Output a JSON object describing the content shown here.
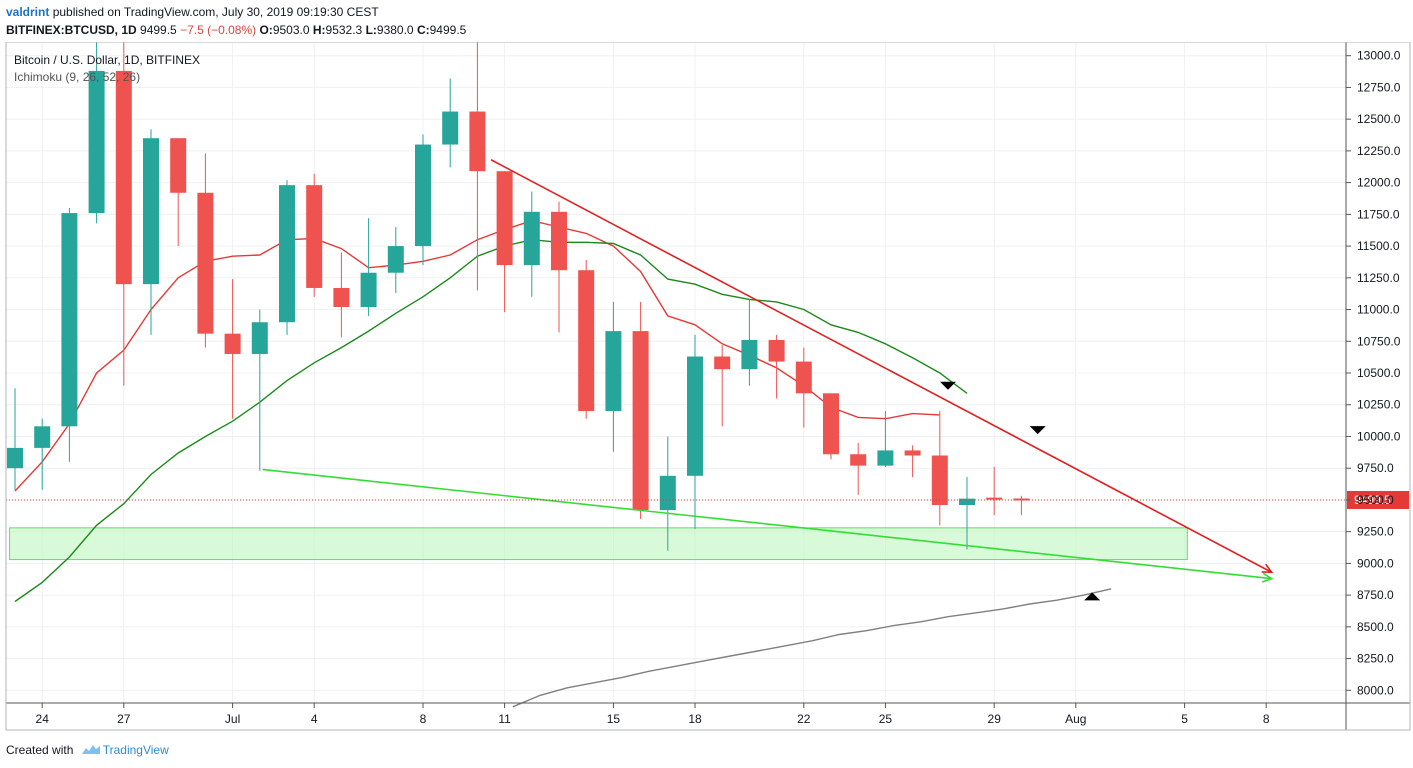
{
  "header": {
    "user": "valdrint",
    "published": "published on TradingView.com, July 30, 2019 09:19:30 CEST",
    "symbol": "BITFINEX:BTCUSD, 1D",
    "last": "9499.5",
    "change": "−7.5 (−0.08%)",
    "o_label": "O:",
    "o_value": "9503.0",
    "h_label": "H:",
    "h_value": "9532.3",
    "l_label": "L:",
    "l_value": "9380.0",
    "c_label": "C:",
    "c_value": "9499.5"
  },
  "legend": {
    "instrument": "Bitcoin / U.S. Dollar, 1D, BITFINEX",
    "indicator": "Ichimoku (9, 26, 52, 26)"
  },
  "footer": {
    "created_with": "Created with",
    "brand": "TradingView"
  },
  "colors": {
    "up": "#26a69a",
    "down": "#ef5350",
    "conversion": "#e53935",
    "base": "#1b8a1b",
    "span": "#808080",
    "resistance": "#e02020",
    "support": "#33dd33",
    "zone": "#b9f5b9",
    "price_line": "#e53935"
  },
  "chart_data": {
    "type": "candlestick",
    "y_ticks": [
      8000,
      8250,
      8500,
      8750,
      9000,
      9250,
      9500,
      9750,
      10000,
      10250,
      10500,
      10750,
      11000,
      11250,
      11500,
      11750,
      12000,
      12250,
      12500,
      12750,
      13000
    ],
    "ylim": [
      7900,
      13100
    ],
    "x_ticks": [
      {
        "label": "24",
        "i": 1
      },
      {
        "label": "27",
        "i": 4
      },
      {
        "label": "Jul",
        "i": 8
      },
      {
        "label": "4",
        "i": 11
      },
      {
        "label": "8",
        "i": 15
      },
      {
        "label": "11",
        "i": 18
      },
      {
        "label": "15",
        "i": 22
      },
      {
        "label": "18",
        "i": 25
      },
      {
        "label": "22",
        "i": 29
      },
      {
        "label": "25",
        "i": 32
      },
      {
        "label": "29",
        "i": 36
      },
      {
        "label": "Aug",
        "i": 39
      },
      {
        "label": "5",
        "i": 43
      },
      {
        "label": "8",
        "i": 46
      }
    ],
    "last_price": 9499.5,
    "last_price_label": "9499.5",
    "candles": [
      {
        "o": 9750,
        "h": 10380,
        "l": 9580,
        "c": 9910
      },
      {
        "o": 9910,
        "h": 10140,
        "l": 9580,
        "c": 10080
      },
      {
        "o": 10080,
        "h": 11800,
        "l": 9800,
        "c": 11760
      },
      {
        "o": 11760,
        "h": 13300,
        "l": 11680,
        "c": 12880
      },
      {
        "o": 12880,
        "h": 13250,
        "l": 10400,
        "c": 11200
      },
      {
        "o": 11200,
        "h": 12420,
        "l": 10800,
        "c": 12350
      },
      {
        "o": 12350,
        "h": 12350,
        "l": 11500,
        "c": 11920
      },
      {
        "o": 11920,
        "h": 12230,
        "l": 10700,
        "c": 10810
      },
      {
        "o": 10810,
        "h": 11240,
        "l": 10140,
        "c": 10650
      },
      {
        "o": 10650,
        "h": 11000,
        "l": 9730,
        "c": 10900
      },
      {
        "o": 10900,
        "h": 12020,
        "l": 10800,
        "c": 11980
      },
      {
        "o": 11980,
        "h": 12070,
        "l": 11100,
        "c": 11170
      },
      {
        "o": 11170,
        "h": 11450,
        "l": 10780,
        "c": 11020
      },
      {
        "o": 11020,
        "h": 11720,
        "l": 10950,
        "c": 11290
      },
      {
        "o": 11290,
        "h": 11650,
        "l": 11130,
        "c": 11500
      },
      {
        "o": 11500,
        "h": 12380,
        "l": 11350,
        "c": 12300
      },
      {
        "o": 12300,
        "h": 12820,
        "l": 12120,
        "c": 12560
      },
      {
        "o": 12560,
        "h": 13180,
        "l": 11150,
        "c": 12090
      },
      {
        "o": 12090,
        "h": 12090,
        "l": 10980,
        "c": 11350
      },
      {
        "o": 11350,
        "h": 11930,
        "l": 11100,
        "c": 11770
      },
      {
        "o": 11770,
        "h": 11850,
        "l": 10820,
        "c": 11310
      },
      {
        "o": 11310,
        "h": 11390,
        "l": 10140,
        "c": 10200
      },
      {
        "o": 10200,
        "h": 11060,
        "l": 9880,
        "c": 10830
      },
      {
        "o": 10830,
        "h": 11060,
        "l": 9350,
        "c": 9420
      },
      {
        "o": 9420,
        "h": 10000,
        "l": 9100,
        "c": 9690
      },
      {
        "o": 9690,
        "h": 10800,
        "l": 9270,
        "c": 10630
      },
      {
        "o": 10630,
        "h": 10720,
        "l": 10080,
        "c": 10530
      },
      {
        "o": 10530,
        "h": 11080,
        "l": 10400,
        "c": 10760
      },
      {
        "o": 10760,
        "h": 10800,
        "l": 10300,
        "c": 10590
      },
      {
        "o": 10590,
        "h": 10700,
        "l": 10070,
        "c": 10340
      },
      {
        "o": 10340,
        "h": 10330,
        "l": 9820,
        "c": 9860
      },
      {
        "o": 9860,
        "h": 9950,
        "l": 9540,
        "c": 9770
      },
      {
        "o": 9770,
        "h": 10200,
        "l": 9760,
        "c": 9890
      },
      {
        "o": 9890,
        "h": 9930,
        "l": 9680,
        "c": 9850
      },
      {
        "o": 9850,
        "h": 10200,
        "l": 9300,
        "c": 9460
      },
      {
        "o": 9460,
        "h": 9680,
        "l": 9110,
        "c": 9510
      },
      {
        "o": 9510,
        "h": 9760,
        "l": 9380,
        "c": 9500
      },
      {
        "o": 9503,
        "h": 9532.3,
        "l": 9380,
        "c": 9499.5
      }
    ],
    "ichimoku": {
      "conversion_line": [
        9570,
        9800,
        10100,
        10500,
        10680,
        11000,
        11250,
        11380,
        11420,
        11430,
        11550,
        11560,
        11480,
        11330,
        11350,
        11380,
        11430,
        11550,
        11630,
        11700,
        11650,
        11600,
        11500,
        11300,
        10950,
        10880,
        10730,
        10640,
        10540,
        10400,
        10230,
        10150,
        10140,
        10180,
        10170
      ],
      "base_line": [
        8700,
        8850,
        9050,
        9300,
        9470,
        9700,
        9870,
        10000,
        10120,
        10270,
        10440,
        10580,
        10700,
        10830,
        10970,
        11100,
        11250,
        11420,
        11500,
        11550,
        11530,
        11530,
        11520,
        11430,
        11240,
        11200,
        11120,
        11080,
        11060,
        11000,
        10880,
        10820,
        10730,
        10620,
        10500,
        10340
      ],
      "lagging_span": {
        "start": 18.3,
        "values": [
          7870,
          7960,
          8020,
          8060,
          8100,
          8150,
          8190,
          8230,
          8270,
          8310,
          8350,
          8390,
          8440,
          8470,
          8510,
          8540,
          8580,
          8610,
          8640,
          8680,
          8710,
          8750,
          8800
        ]
      }
    },
    "drawings": {
      "resistance": {
        "from": [
          17.5,
          12180
        ],
        "to": [
          46.2,
          8930
        ]
      },
      "support": {
        "from": [
          9.1,
          9740
        ],
        "to": [
          46.2,
          8880
        ]
      },
      "zone": {
        "from_i": -0.2,
        "to_i": 43.1,
        "top": 9280,
        "bottom": 9030
      },
      "markers": [
        {
          "type": "down",
          "i": 34.3,
          "price": 10400
        },
        {
          "type": "down",
          "i": 37.6,
          "price": 10050
        },
        {
          "type": "up",
          "i": 39.6,
          "price": 8740
        }
      ]
    }
  }
}
